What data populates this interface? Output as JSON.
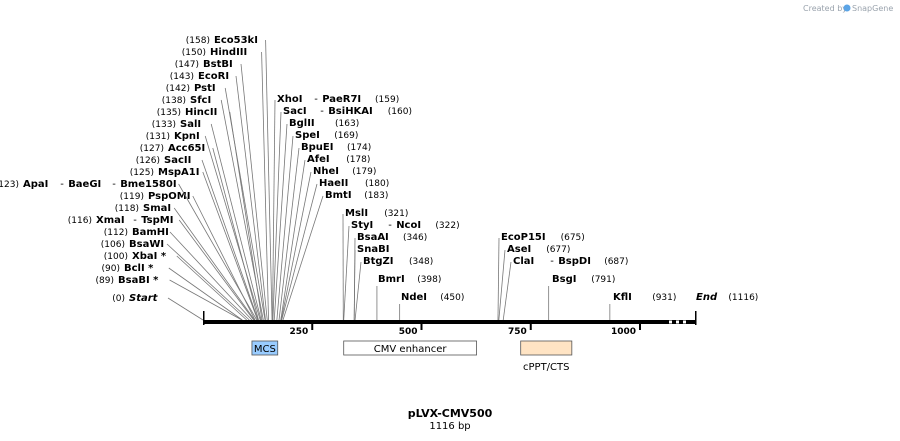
{
  "credit": {
    "created_by": "Created by",
    "brand": "SnapGene"
  },
  "map": {
    "name": "pLVX-CMV500",
    "length_text": "1116 bp",
    "length_bp": 1116,
    "ticks": [
      "250",
      "500",
      "750",
      "1000"
    ]
  },
  "features": [
    {
      "label": "MCS",
      "start": 112,
      "end": 171,
      "color": "#99ccff"
    },
    {
      "label": "CMV enhancer",
      "start": 322,
      "end": 626,
      "color": "#ffffff"
    },
    {
      "label": "cPPT/CTS",
      "start": 727,
      "end": 844,
      "color": "#ffe4c4"
    }
  ],
  "sites": [
    {
      "parts": [
        "Start"
      ],
      "pos": "(0)",
      "bp": 0,
      "italic": true
    },
    {
      "parts": [
        "BsaBI *"
      ],
      "pos": "(89)",
      "bp": 89
    },
    {
      "parts": [
        "BclI *"
      ],
      "pos": "(90)",
      "bp": 90
    },
    {
      "parts": [
        "XbaI *"
      ],
      "pos": "(100)",
      "bp": 100
    },
    {
      "parts": [
        "BsaWI"
      ],
      "pos": "(106)",
      "bp": 106
    },
    {
      "parts": [
        "BamHI"
      ],
      "pos": "(112)",
      "bp": 112
    },
    {
      "parts": [
        "XmaI",
        "TspMI"
      ],
      "pos": "(116)",
      "bp": 116
    },
    {
      "parts": [
        "SmaI"
      ],
      "pos": "(118)",
      "bp": 118
    },
    {
      "parts": [
        "PspOMI"
      ],
      "pos": "(119)",
      "bp": 119
    },
    {
      "parts": [
        "ApaI",
        "BaeGI",
        "Bme1580I"
      ],
      "pos": "(123)",
      "bp": 123
    },
    {
      "parts": [
        "MspA1I"
      ],
      "pos": "(125)",
      "bp": 125
    },
    {
      "parts": [
        "SacII"
      ],
      "pos": "(126)",
      "bp": 126
    },
    {
      "parts": [
        "Acc65I"
      ],
      "pos": "(127)",
      "bp": 127
    },
    {
      "parts": [
        "KpnI"
      ],
      "pos": "(131)",
      "bp": 131
    },
    {
      "parts": [
        "SalI"
      ],
      "pos": "(133)",
      "bp": 133
    },
    {
      "parts": [
        "HincII"
      ],
      "pos": "(135)",
      "bp": 135
    },
    {
      "parts": [
        "SfcI"
      ],
      "pos": "(138)",
      "bp": 138
    },
    {
      "parts": [
        "PstI"
      ],
      "pos": "(142)",
      "bp": 142
    },
    {
      "parts": [
        "EcoRI"
      ],
      "pos": "(143)",
      "bp": 143
    },
    {
      "parts": [
        "BstBI"
      ],
      "pos": "(147)",
      "bp": 147
    },
    {
      "parts": [
        "HindIII"
      ],
      "pos": "(150)",
      "bp": 150
    },
    {
      "parts": [
        "Eco53kI"
      ],
      "pos": "(158)",
      "bp": 158
    },
    {
      "parts": [
        "XhoI",
        "PaeR7I"
      ],
      "pos": "(159)",
      "bp": 159
    },
    {
      "parts": [
        "SacI",
        "BsiHKAI"
      ],
      "pos": "(160)",
      "bp": 160
    },
    {
      "parts": [
        "BglII"
      ],
      "pos": "(163)",
      "bp": 163
    },
    {
      "parts": [
        "SpeI"
      ],
      "pos": "(169)",
      "bp": 169
    },
    {
      "parts": [
        "BpuEI"
      ],
      "pos": "(174)",
      "bp": 174
    },
    {
      "parts": [
        "AfeI"
      ],
      "pos": "(178)",
      "bp": 178
    },
    {
      "parts": [
        "NheI"
      ],
      "pos": "(179)",
      "bp": 179
    },
    {
      "parts": [
        "HaeII"
      ],
      "pos": "(180)",
      "bp": 180
    },
    {
      "parts": [
        "BmtI"
      ],
      "pos": "(183)",
      "bp": 183
    },
    {
      "parts": [
        "MslI"
      ],
      "pos": "(321)",
      "bp": 321
    },
    {
      "parts": [
        "StyI",
        "NcoI"
      ],
      "pos": "(322)",
      "bp": 322
    },
    {
      "parts": [
        "BsaAI"
      ],
      "pos": "(346)",
      "bp": 346
    },
    {
      "parts": [
        "SnaBI"
      ],
      "pos": "",
      "bp": 346
    },
    {
      "parts": [
        "BtgZI"
      ],
      "pos": "(348)",
      "bp": 348
    },
    {
      "parts": [
        "BmrI"
      ],
      "pos": "(398)",
      "bp": 398
    },
    {
      "parts": [
        "NdeI"
      ],
      "pos": "(450)",
      "bp": 450
    },
    {
      "parts": [
        "EcoP15I"
      ],
      "pos": "(675)",
      "bp": 675
    },
    {
      "parts": [
        "AseI"
      ],
      "pos": "(677)",
      "bp": 677
    },
    {
      "parts": [
        "ClaI",
        "BspDI"
      ],
      "pos": "(687)",
      "bp": 687
    },
    {
      "parts": [
        "BsgI"
      ],
      "pos": "(791)",
      "bp": 791
    },
    {
      "parts": [
        "KflI"
      ],
      "pos": "(931)",
      "bp": 931
    },
    {
      "parts": [
        "End"
      ],
      "pos": "(1116)",
      "bp": 1116,
      "italic": true
    }
  ]
}
